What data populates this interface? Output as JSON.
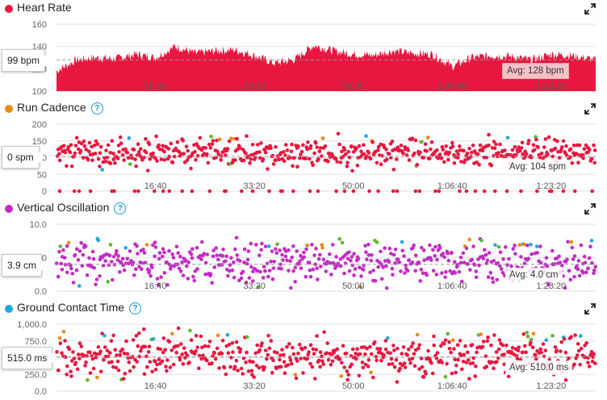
{
  "chart_data": [
    {
      "id": "heart_rate",
      "type": "area",
      "title": "Heart Rate",
      "color": "#e8173f",
      "dot_color": "#e8173f",
      "help_icon": false,
      "yticks": [
        "160",
        "140",
        "120",
        "100"
      ],
      "ytick_values": [
        160,
        140,
        120,
        100
      ],
      "ylim": [
        100,
        160
      ],
      "xticks": [
        "16:40",
        "33:20",
        "50:00",
        "1:06:40",
        "1:23:20"
      ],
      "xtick_values": [
        1000,
        2000,
        3000,
        4000,
        5000
      ],
      "xlim": [
        0,
        5450
      ],
      "current_value": "99 bpm",
      "average_label": "Avg: 128 bpm",
      "average_value": 128,
      "x": [
        0,
        200,
        400,
        600,
        800,
        1000,
        1200,
        1400,
        1600,
        1800,
        2000,
        2200,
        2400,
        2600,
        2800,
        3000,
        3200,
        3400,
        3600,
        3800,
        4000,
        4200,
        4400,
        4600,
        4800,
        5000,
        5200,
        5450
      ],
      "y": [
        118,
        128,
        130,
        129,
        133,
        130,
        140,
        134,
        136,
        137,
        132,
        125,
        128,
        141,
        136,
        133,
        132,
        136,
        134,
        133,
        122,
        130,
        132,
        131,
        128,
        133,
        132,
        128
      ]
    },
    {
      "id": "run_cadence",
      "type": "scatter",
      "title": "Run Cadence",
      "dot_color": "#e88a1a",
      "help_icon": true,
      "yticks": [
        "200",
        "150",
        "100",
        "50",
        "0"
      ],
      "ytick_values": [
        200,
        150,
        100,
        50,
        0
      ],
      "ylim": [
        0,
        200
      ],
      "xticks": [
        "16:40",
        "33:20",
        "50:00",
        "1:06:40",
        "1:23:20"
      ],
      "xtick_values": [
        1000,
        2000,
        3000,
        4000,
        5000
      ],
      "xlim": [
        0,
        5450
      ],
      "current_value": "0 spm",
      "average_label": "Avg: 104 spm",
      "average_value": 104,
      "center": 115,
      "spread": 20,
      "zero_band": true
    },
    {
      "id": "vertical_oscillation",
      "type": "scatter",
      "title": "Vertical Oscillation",
      "dot_color": "#c32cc7",
      "help_icon": true,
      "yticks": [
        "10.0",
        "5.0",
        "0.0"
      ],
      "ytick_values": [
        10,
        5,
        0
      ],
      "ylim": [
        0,
        10
      ],
      "xticks": [
        "16:40",
        "33:20",
        "50:00",
        "1:06:40",
        "1:23:20"
      ],
      "xtick_values": [
        1000,
        2000,
        3000,
        4000,
        5000
      ],
      "xlim": [
        0,
        5450
      ],
      "current_value": "3.9 cm",
      "average_label": "Avg: 4.0 cm",
      "average_value": 4.0,
      "center": 4.2,
      "spread": 1.4
    },
    {
      "id": "ground_contact_time",
      "type": "scatter",
      "title": "Ground Contact Time",
      "dot_color": "#1fa8e0",
      "help_icon": true,
      "yticks": [
        "1,000.0",
        "750.0",
        "500.0",
        "250.0",
        "0.0"
      ],
      "ytick_values": [
        1000,
        750,
        500,
        250,
        0
      ],
      "ylim": [
        0,
        1000
      ],
      "xticks": [
        "16:40",
        "33:20",
        "50:00",
        "1:06:40",
        "1:23:20"
      ],
      "xtick_values": [
        1000,
        2000,
        3000,
        4000,
        5000
      ],
      "xlim": [
        0,
        5450
      ],
      "current_value": "515.0 ms",
      "average_label": "Avg: 510.0 ms",
      "average_value": 510,
      "center": 520,
      "spread": 150
    }
  ],
  "colors": {
    "red": "#e8173f",
    "magenta": "#c32cc7",
    "blue": "#1fa8e0",
    "green": "#5fb82f",
    "orange": "#e88a1a",
    "grid": "#e2e2e2",
    "avg_line": "#9a9a9a"
  }
}
